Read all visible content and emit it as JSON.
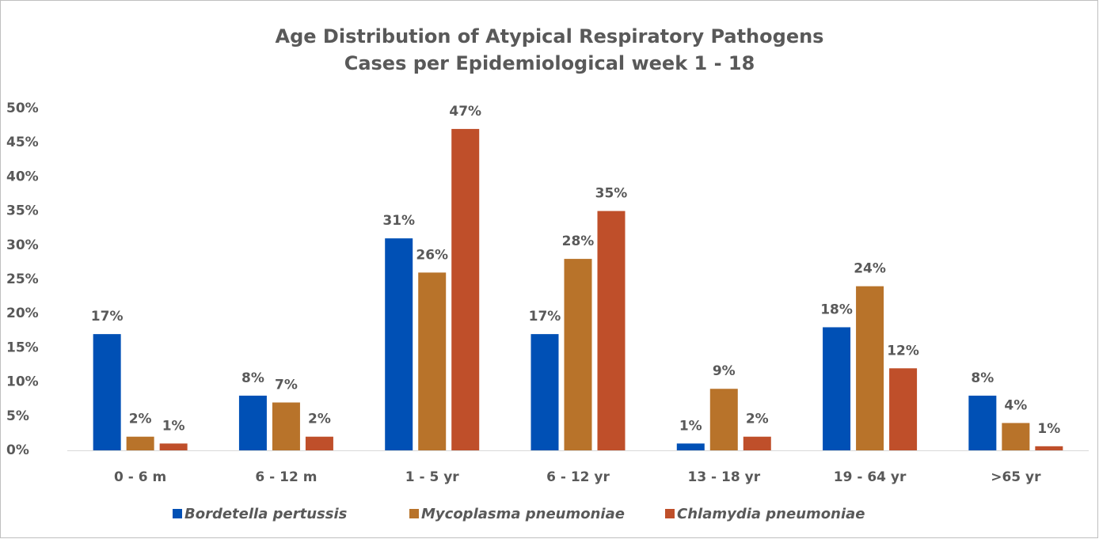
{
  "chart_data": {
    "type": "bar",
    "title": "Age Distribution of Atypical Respiratory Pathogens",
    "subtitle": "Cases per Epidemiological week 1 - 18",
    "categories": [
      "0 - 6 m",
      "6 - 12 m",
      "1 - 5 yr",
      "6 - 12 yr",
      "13 - 18 yr",
      "19 - 64 yr",
      ">65 yr"
    ],
    "series": [
      {
        "name": "Bordetella pertussis",
        "color": "#0050b5",
        "values": [
          17,
          8,
          31,
          17,
          1,
          18,
          8
        ],
        "value_labels": [
          "17%",
          "8%",
          "31%",
          "17%",
          "1%",
          "18%",
          "8%"
        ]
      },
      {
        "name": "Mycoplasma pneumoniae",
        "color": "#b8732a",
        "values": [
          2,
          7,
          26,
          28,
          9,
          24,
          4
        ],
        "value_labels": [
          "2%",
          "7%",
          "26%",
          "28%",
          "9%",
          "24%",
          "4%"
        ]
      },
      {
        "name": "Chlamydia pneumoniae",
        "color": "#bf4f2a",
        "values": [
          1,
          2,
          47,
          35,
          2,
          12,
          0.6
        ],
        "value_labels": [
          "1%",
          "2%",
          "47%",
          "35%",
          "2%",
          "12%",
          "1%"
        ]
      }
    ],
    "ylim": [
      0,
      50
    ],
    "yticks": [
      {
        "value": 0,
        "label": "0%"
      },
      {
        "value": 5,
        "label": "5%"
      },
      {
        "value": 10,
        "label": "10%"
      },
      {
        "value": 15,
        "label": "15%"
      },
      {
        "value": 20,
        "label": "20%"
      },
      {
        "value": 25,
        "label": "25%"
      },
      {
        "value": 30,
        "label": "30%"
      },
      {
        "value": 35,
        "label": "35%"
      },
      {
        "value": 40,
        "label": "40%"
      },
      {
        "value": 45,
        "label": "45%"
      },
      {
        "value": 50,
        "label": "50%"
      }
    ],
    "grid": false,
    "legend": "bottom"
  }
}
